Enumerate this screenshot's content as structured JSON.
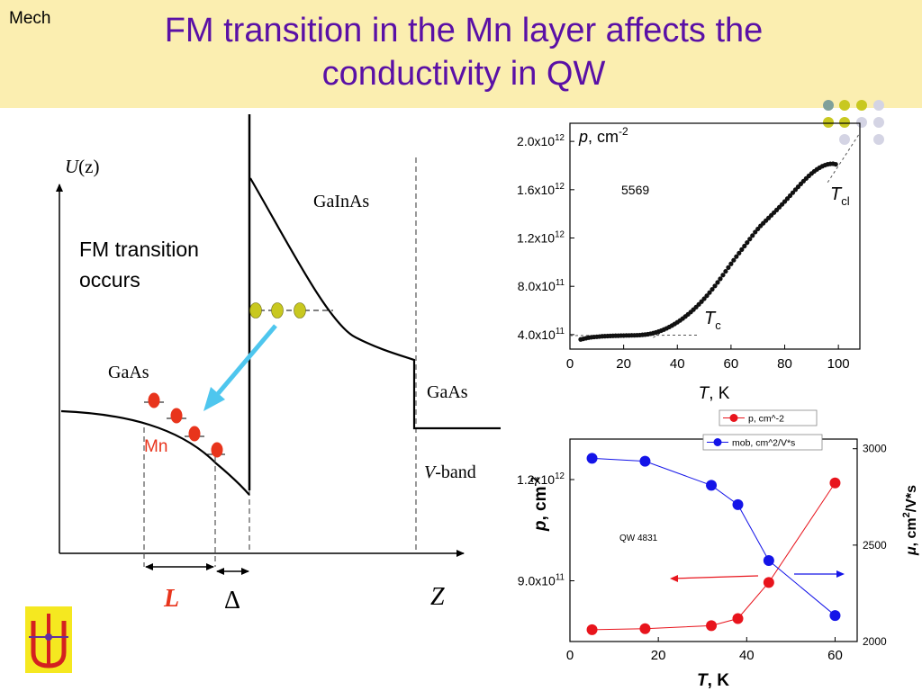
{
  "header": {
    "tag": "Mech",
    "title_line1": "FM transition in the Mn layer affects the",
    "title_line2": "conductivity in QW"
  },
  "diagram": {
    "y_axis_label_main": "U",
    "y_axis_label_arg": "(z)",
    "x_axis_label": "Z",
    "note_line1": "FM transition",
    "note_line2": "occurs",
    "layer_left": "GaAs",
    "layer_middle": "GaInAs",
    "layer_right": "GaAs",
    "band_label_italic": "V",
    "band_label_rest": "-band",
    "impurity_label": "Mn",
    "width_label": "L",
    "gap_label": "Δ",
    "colors": {
      "mn": "#e8341c",
      "carrier": "#c8c820",
      "arrow": "#4ec6ee",
      "L": "#e8341c"
    }
  },
  "logo": {
    "icon": "institute-emblem-icon"
  },
  "decor": {
    "icon": "dot-grid-icon"
  },
  "chart_data": [
    {
      "type": "scatter",
      "sample_label": "5569",
      "ylabel_italic": "p",
      "ylabel_rest": ", cm",
      "ylabel_exp": "-2",
      "xlabel_italic": "T",
      "xlabel_rest": ", K",
      "xlim": [
        0,
        108
      ],
      "ylim": [
        280000000000.0,
        2150000000000.0
      ],
      "x_ticks": [
        0,
        20,
        40,
        60,
        80,
        100
      ],
      "y_ticks": [
        {
          "value": 400000000000.0,
          "mantissa": "4.0x10",
          "exp": "11"
        },
        {
          "value": 800000000000.0,
          "mantissa": "8.0x10",
          "exp": "11"
        },
        {
          "value": 1200000000000.0,
          "mantissa": "1.2x10",
          "exp": "12"
        },
        {
          "value": 1600000000000.0,
          "mantissa": "1.6x10",
          "exp": "12"
        },
        {
          "value": 2000000000000.0,
          "mantissa": "2.0x10",
          "exp": "12"
        }
      ],
      "annotations": [
        {
          "italic": "T",
          "sub": "c",
          "x": 40,
          "y": 400000000000.0
        },
        {
          "italic": "T",
          "sub": "cl",
          "x": 99,
          "y": 1600000000000.0
        }
      ],
      "points": [
        [
          4,
          360000000000.0
        ],
        [
          5,
          365000000000.0
        ],
        [
          6,
          370000000000.0
        ],
        [
          7,
          375000000000.0
        ],
        [
          8,
          378000000000.0
        ],
        [
          9,
          380000000000.0
        ],
        [
          10,
          382000000000.0
        ],
        [
          11,
          384000000000.0
        ],
        [
          12,
          386000000000.0
        ],
        [
          13,
          387000000000.0
        ],
        [
          14,
          388000000000.0
        ],
        [
          15,
          389000000000.0
        ],
        [
          16,
          390000000000.0
        ],
        [
          17,
          391000000000.0
        ],
        [
          18,
          391000000000.0
        ],
        [
          19,
          392000000000.0
        ],
        [
          20,
          392000000000.0
        ],
        [
          21,
          393000000000.0
        ],
        [
          22,
          393000000000.0
        ],
        [
          23,
          394000000000.0
        ],
        [
          24,
          394000000000.0
        ],
        [
          25,
          395000000000.0
        ],
        [
          26,
          396000000000.0
        ],
        [
          27,
          398000000000.0
        ],
        [
          28,
          400000000000.0
        ],
        [
          29,
          403000000000.0
        ],
        [
          30,
          407000000000.0
        ],
        [
          31,
          412000000000.0
        ],
        [
          32,
          418000000000.0
        ],
        [
          33,
          425000000000.0
        ],
        [
          34,
          433000000000.0
        ],
        [
          35,
          442000000000.0
        ],
        [
          36,
          452000000000.0
        ],
        [
          37,
          463000000000.0
        ],
        [
          38,
          475000000000.0
        ],
        [
          39,
          488000000000.0
        ],
        [
          40,
          502000000000.0
        ],
        [
          41,
          517000000000.0
        ],
        [
          42,
          533000000000.0
        ],
        [
          43,
          550000000000.0
        ],
        [
          44,
          568000000000.0
        ],
        [
          45,
          587000000000.0
        ],
        [
          46,
          607000000000.0
        ],
        [
          47,
          628000000000.0
        ],
        [
          48,
          650000000000.0
        ],
        [
          49,
          673000000000.0
        ],
        [
          50,
          697000000000.0
        ],
        [
          51,
          722000000000.0
        ],
        [
          52,
          748000000000.0
        ],
        [
          53,
          775000000000.0
        ],
        [
          54,
          803000000000.0
        ],
        [
          55,
          832000000000.0
        ],
        [
          56,
          862000000000.0
        ],
        [
          57,
          893000000000.0
        ],
        [
          58,
          924000000000.0
        ],
        [
          59,
          955000000000.0
        ],
        [
          60,
          986000000000.0
        ],
        [
          61,
          1016000000000.0
        ],
        [
          62,
          1046000000000.0
        ],
        [
          63,
          1075000000000.0
        ],
        [
          64,
          1104000000000.0
        ],
        [
          65,
          1133000000000.0
        ],
        [
          66,
          1162000000000.0
        ],
        [
          67,
          1191000000000.0
        ],
        [
          68,
          1220000000000.0
        ],
        [
          69,
          1249000000000.0
        ],
        [
          70,
          1275000000000.0
        ],
        [
          71,
          1300000000000.0
        ],
        [
          72,
          1322000000000.0
        ],
        [
          73,
          1344000000000.0
        ],
        [
          74,
          1366000000000.0
        ],
        [
          75,
          1388000000000.0
        ],
        [
          76,
          1410000000000.0
        ],
        [
          77,
          1432000000000.0
        ],
        [
          78,
          1455000000000.0
        ],
        [
          79,
          1478000000000.0
        ],
        [
          80,
          1502000000000.0
        ],
        [
          81,
          1526000000000.0
        ],
        [
          82,
          1550000000000.0
        ],
        [
          83,
          1575000000000.0
        ],
        [
          84,
          1600000000000.0
        ],
        [
          85,
          1624000000000.0
        ],
        [
          86,
          1648000000000.0
        ],
        [
          87,
          1671000000000.0
        ],
        [
          88,
          1693000000000.0
        ],
        [
          89,
          1714000000000.0
        ],
        [
          90,
          1734000000000.0
        ],
        [
          91,
          1752000000000.0
        ],
        [
          92,
          1768000000000.0
        ],
        [
          93,
          1782000000000.0
        ],
        [
          94,
          1794000000000.0
        ],
        [
          95,
          1803000000000.0
        ],
        [
          96,
          1810000000000.0
        ],
        [
          97,
          1814000000000.0
        ],
        [
          98,
          1815000000000.0
        ],
        [
          99,
          1810000000000.0
        ]
      ]
    },
    {
      "type": "line",
      "sample_label": "QW 4831",
      "xlabel_italic": "T",
      "xlabel_rest": ", K",
      "ylabel_left_italic": "p",
      "ylabel_left_rest": ", cm",
      "ylabel_left_exp": "-2",
      "ylabel_right_mu": "μ",
      "ylabel_right_a": ", cm",
      "ylabel_right_exp": "2",
      "ylabel_right_b": "/V*s",
      "xlim": [
        0,
        65
      ],
      "ylim_left": [
        720000000000.0,
        1320000000000.0
      ],
      "ylim_right": [
        2000,
        3050
      ],
      "x_ticks": [
        0,
        20,
        40,
        60
      ],
      "y_ticks_left": [
        {
          "value": 900000000000.0,
          "mantissa": "9.0x10",
          "exp": "11"
        },
        {
          "value": 1200000000000.0,
          "mantissa": "1.2x10",
          "exp": "12"
        }
      ],
      "y_ticks_right": [
        2000,
        2500,
        3000
      ],
      "legend_position": "top",
      "series": [
        {
          "name": "p, cm^-2",
          "axis": "left",
          "color": "#e8141c",
          "x": [
            5,
            17,
            32,
            38,
            45,
            60
          ],
          "y": [
            755000000000.0,
            758000000000.0,
            767000000000.0,
            788000000000.0,
            895000000000.0,
            1190000000000.0
          ]
        },
        {
          "name": "mob, cm^2/V*s",
          "axis": "right",
          "color": "#1414e8",
          "x": [
            5,
            17,
            32,
            38,
            45,
            60
          ],
          "y": [
            2950,
            2935,
            2810,
            2710,
            2420,
            2135
          ]
        }
      ]
    }
  ]
}
